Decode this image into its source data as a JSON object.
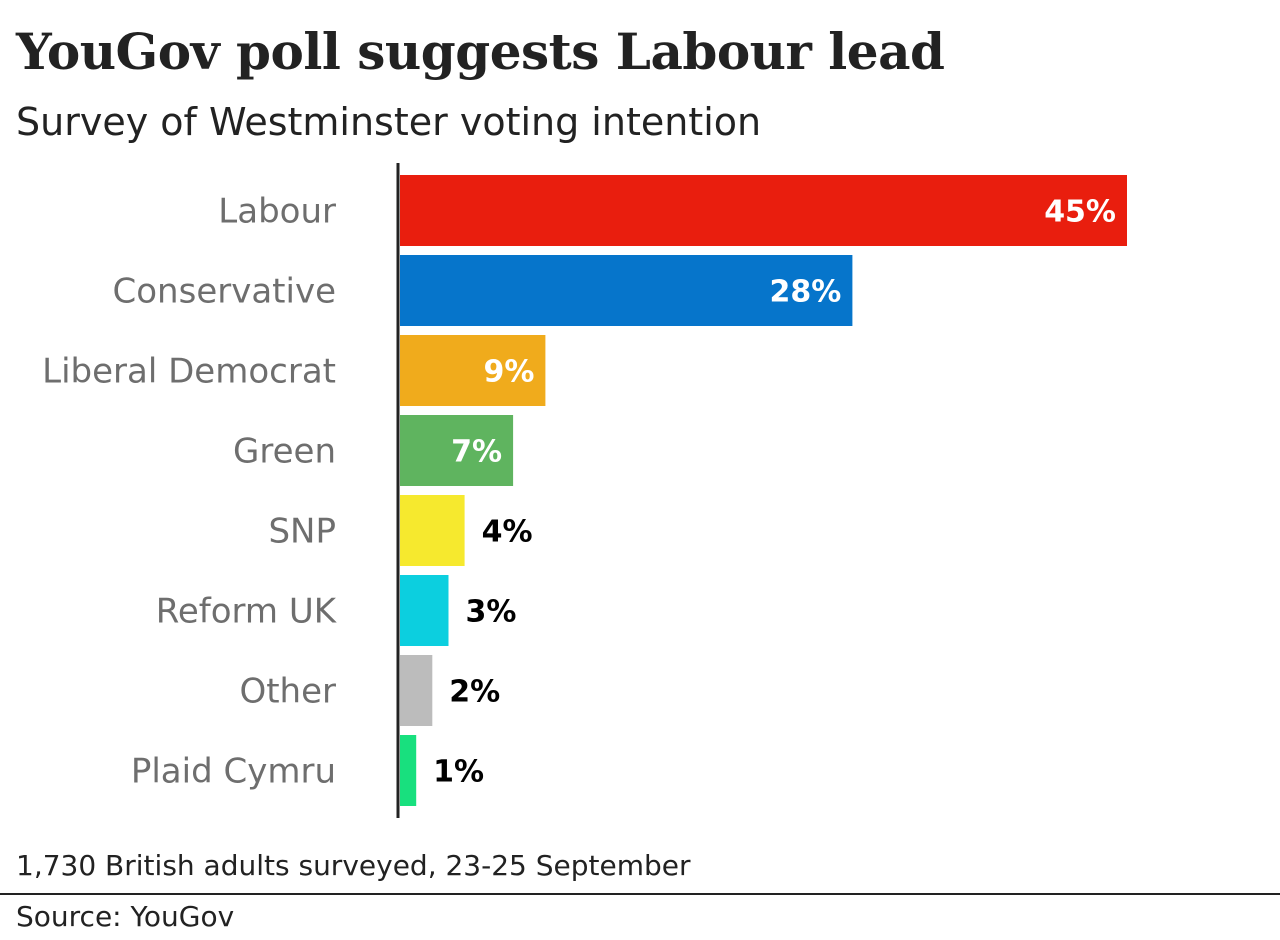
{
  "chart_data": {
    "type": "bar",
    "orientation": "horizontal",
    "title": "YouGov poll suggests Labour lead",
    "subtitle": "Survey of Westminster voting intention",
    "categories": [
      "Labour",
      "Conservative",
      "Liberal Democrat",
      "Green",
      "SNP",
      "Reform UK",
      "Other",
      "Plaid Cymru"
    ],
    "values": [
      45,
      28,
      9,
      7,
      4,
      3,
      2,
      1
    ],
    "value_labels": [
      "45%",
      "28%",
      "9%",
      "7%",
      "4%",
      "3%",
      "2%",
      "1%"
    ],
    "colors": [
      "#e91e0e",
      "#0675cb",
      "#f0ab1c",
      "#5fb45f",
      "#f6e92e",
      "#0ccfdf",
      "#bcbcbc",
      "#18e07e"
    ],
    "label_colors": [
      "#ffffff",
      "#ffffff",
      "#ffffff",
      "#ffffff",
      "#000000",
      "#000000",
      "#000000",
      "#000000"
    ],
    "label_position": [
      "inside",
      "inside",
      "inside",
      "inside",
      "outside",
      "outside",
      "outside",
      "outside"
    ],
    "xlim": [
      0,
      45
    ],
    "grid": false,
    "legend": "none",
    "xlabel": "",
    "ylabel": ""
  },
  "footer": {
    "note": "1,730 British adults surveyed, 23-25 September",
    "source": "Source: YouGov"
  }
}
